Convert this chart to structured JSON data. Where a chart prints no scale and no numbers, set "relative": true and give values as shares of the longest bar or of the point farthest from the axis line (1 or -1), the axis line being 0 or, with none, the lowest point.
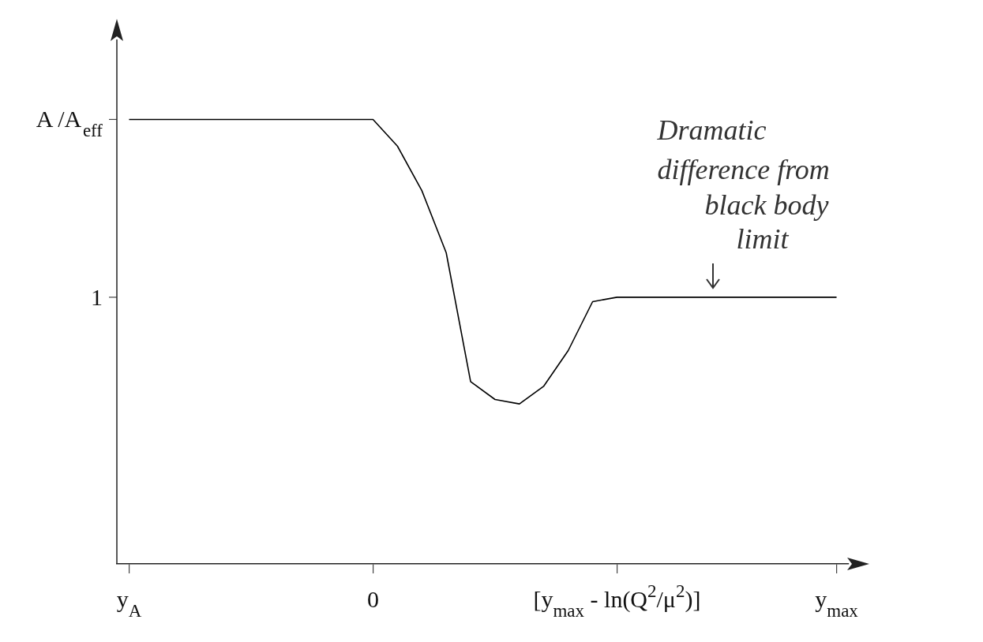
{
  "chart_data": {
    "type": "line",
    "color": "#000000",
    "relative": true,
    "categories": [
      "y$_{A}$",
      null,
      null,
      null,
      null,
      null,
      null,
      null,
      null,
      null,
      "0",
      null,
      null,
      null,
      null,
      null,
      null,
      null,
      null,
      null,
      "[y$_{max}$ - ln(Q$^{2}$/μ$^{2}$)]",
      null,
      null,
      null,
      null,
      null,
      null,
      null,
      null,
      "y$_{max}$"
    ],
    "values": [
      1,
      1,
      1,
      1,
      1,
      1,
      1,
      1,
      1,
      1,
      1,
      0.94,
      0.84,
      0.7,
      0.41,
      0.37,
      0.36,
      0.4,
      0.48,
      0.59,
      0.6,
      0.6,
      0.6,
      0.6,
      0.6,
      0.6,
      0.6,
      0.6,
      0.6,
      0.6
    ],
    "grid": false,
    "legend": false,
    "marker": "none",
    "line_style": "solid",
    "annotations": [
      "A /A$_{eff}$",
      "1",
      "Dramatic difference from black body limit"
    ]
  }
}
